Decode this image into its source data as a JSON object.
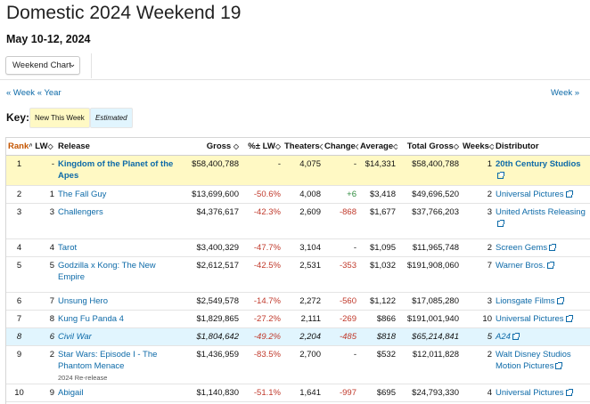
{
  "page": {
    "title": "Domestic 2024 Weekend 19",
    "subtitle": "May 10-12, 2024",
    "dropdown": "Weekend Chart",
    "nav_week_prev": "« Week",
    "nav_year_prev": "« Year",
    "nav_week_next": "Week »"
  },
  "key": {
    "label": "Key:",
    "new": "New This Week",
    "estimated": "Estimated"
  },
  "table": {
    "headers": {
      "rank": "Rank",
      "lw": "LW",
      "release": "Release",
      "gross": "Gross",
      "change_lw": "%± LW",
      "theaters": "Theaters",
      "change": "Change",
      "average": "Average",
      "total_gross": "Total Gross",
      "weeks": "Weeks",
      "distributor": "Distributor"
    },
    "rows": [
      {
        "rank": "1",
        "lw": "-",
        "release": "Kingdom of the Planet of the Apes",
        "gross": "$58,400,788",
        "pct": "-",
        "theaters": "4,075",
        "change": "-",
        "average": "$14,331",
        "total": "$58,400,788",
        "weeks": "1",
        "dist": "20th Century Studios",
        "note": ""
      },
      {
        "rank": "2",
        "lw": "1",
        "release": "The Fall Guy",
        "gross": "$13,699,600",
        "pct": "-50.6%",
        "theaters": "4,008",
        "change": "+6",
        "average": "$3,418",
        "total": "$49,696,520",
        "weeks": "2",
        "dist": "Universal Pictures",
        "note": ""
      },
      {
        "rank": "3",
        "lw": "3",
        "release": "Challengers",
        "gross": "$4,376,617",
        "pct": "-42.3%",
        "theaters": "2,609",
        "change": "-868",
        "average": "$1,677",
        "total": "$37,766,203",
        "weeks": "3",
        "dist": "United Artists Releasing",
        "note": ""
      },
      {
        "rank": "4",
        "lw": "4",
        "release": "Tarot",
        "gross": "$3,400,329",
        "pct": "-47.7%",
        "theaters": "3,104",
        "change": "-",
        "average": "$1,095",
        "total": "$11,965,748",
        "weeks": "2",
        "dist": "Screen Gems",
        "note": ""
      },
      {
        "rank": "5",
        "lw": "5",
        "release": "Godzilla x Kong: The New Empire",
        "gross": "$2,612,517",
        "pct": "-42.5%",
        "theaters": "2,531",
        "change": "-353",
        "average": "$1,032",
        "total": "$191,908,060",
        "weeks": "7",
        "dist": "Warner Bros.",
        "note": ""
      },
      {
        "rank": "6",
        "lw": "7",
        "release": "Unsung Hero",
        "gross": "$2,549,578",
        "pct": "-14.7%",
        "theaters": "2,272",
        "change": "-560",
        "average": "$1,122",
        "total": "$17,085,280",
        "weeks": "3",
        "dist": "Lionsgate Films",
        "note": ""
      },
      {
        "rank": "7",
        "lw": "8",
        "release": "Kung Fu Panda 4",
        "gross": "$1,829,865",
        "pct": "-27.2%",
        "theaters": "2,111",
        "change": "-269",
        "average": "$866",
        "total": "$191,001,940",
        "weeks": "10",
        "dist": "Universal Pictures",
        "note": ""
      },
      {
        "rank": "8",
        "lw": "6",
        "release": "Civil War",
        "gross": "$1,804,642",
        "pct": "-49.2%",
        "theaters": "2,204",
        "change": "-485",
        "average": "$818",
        "total": "$65,214,841",
        "weeks": "5",
        "dist": "A24",
        "note": ""
      },
      {
        "rank": "9",
        "lw": "2",
        "release": "Star Wars: Episode I - The Phantom Menace",
        "gross": "$1,436,959",
        "pct": "-83.5%",
        "theaters": "2,700",
        "change": "-",
        "average": "$532",
        "total": "$12,011,828",
        "weeks": "2",
        "dist": "Walt Disney Studios Motion Pictures",
        "note": "2024 Re-release"
      },
      {
        "rank": "10",
        "lw": "9",
        "release": "Abigail",
        "gross": "$1,140,830",
        "pct": "-51.1%",
        "theaters": "1,641",
        "change": "-997",
        "average": "$695",
        "total": "$24,793,330",
        "weeks": "4",
        "dist": "Universal Pictures",
        "note": ""
      }
    ]
  },
  "colors": {
    "link": "#0d6aa8",
    "new_row": "#fff9c4",
    "estimated_row": "#e1f5fe",
    "negative": "#c0392b",
    "positive": "#2e8b3d"
  }
}
